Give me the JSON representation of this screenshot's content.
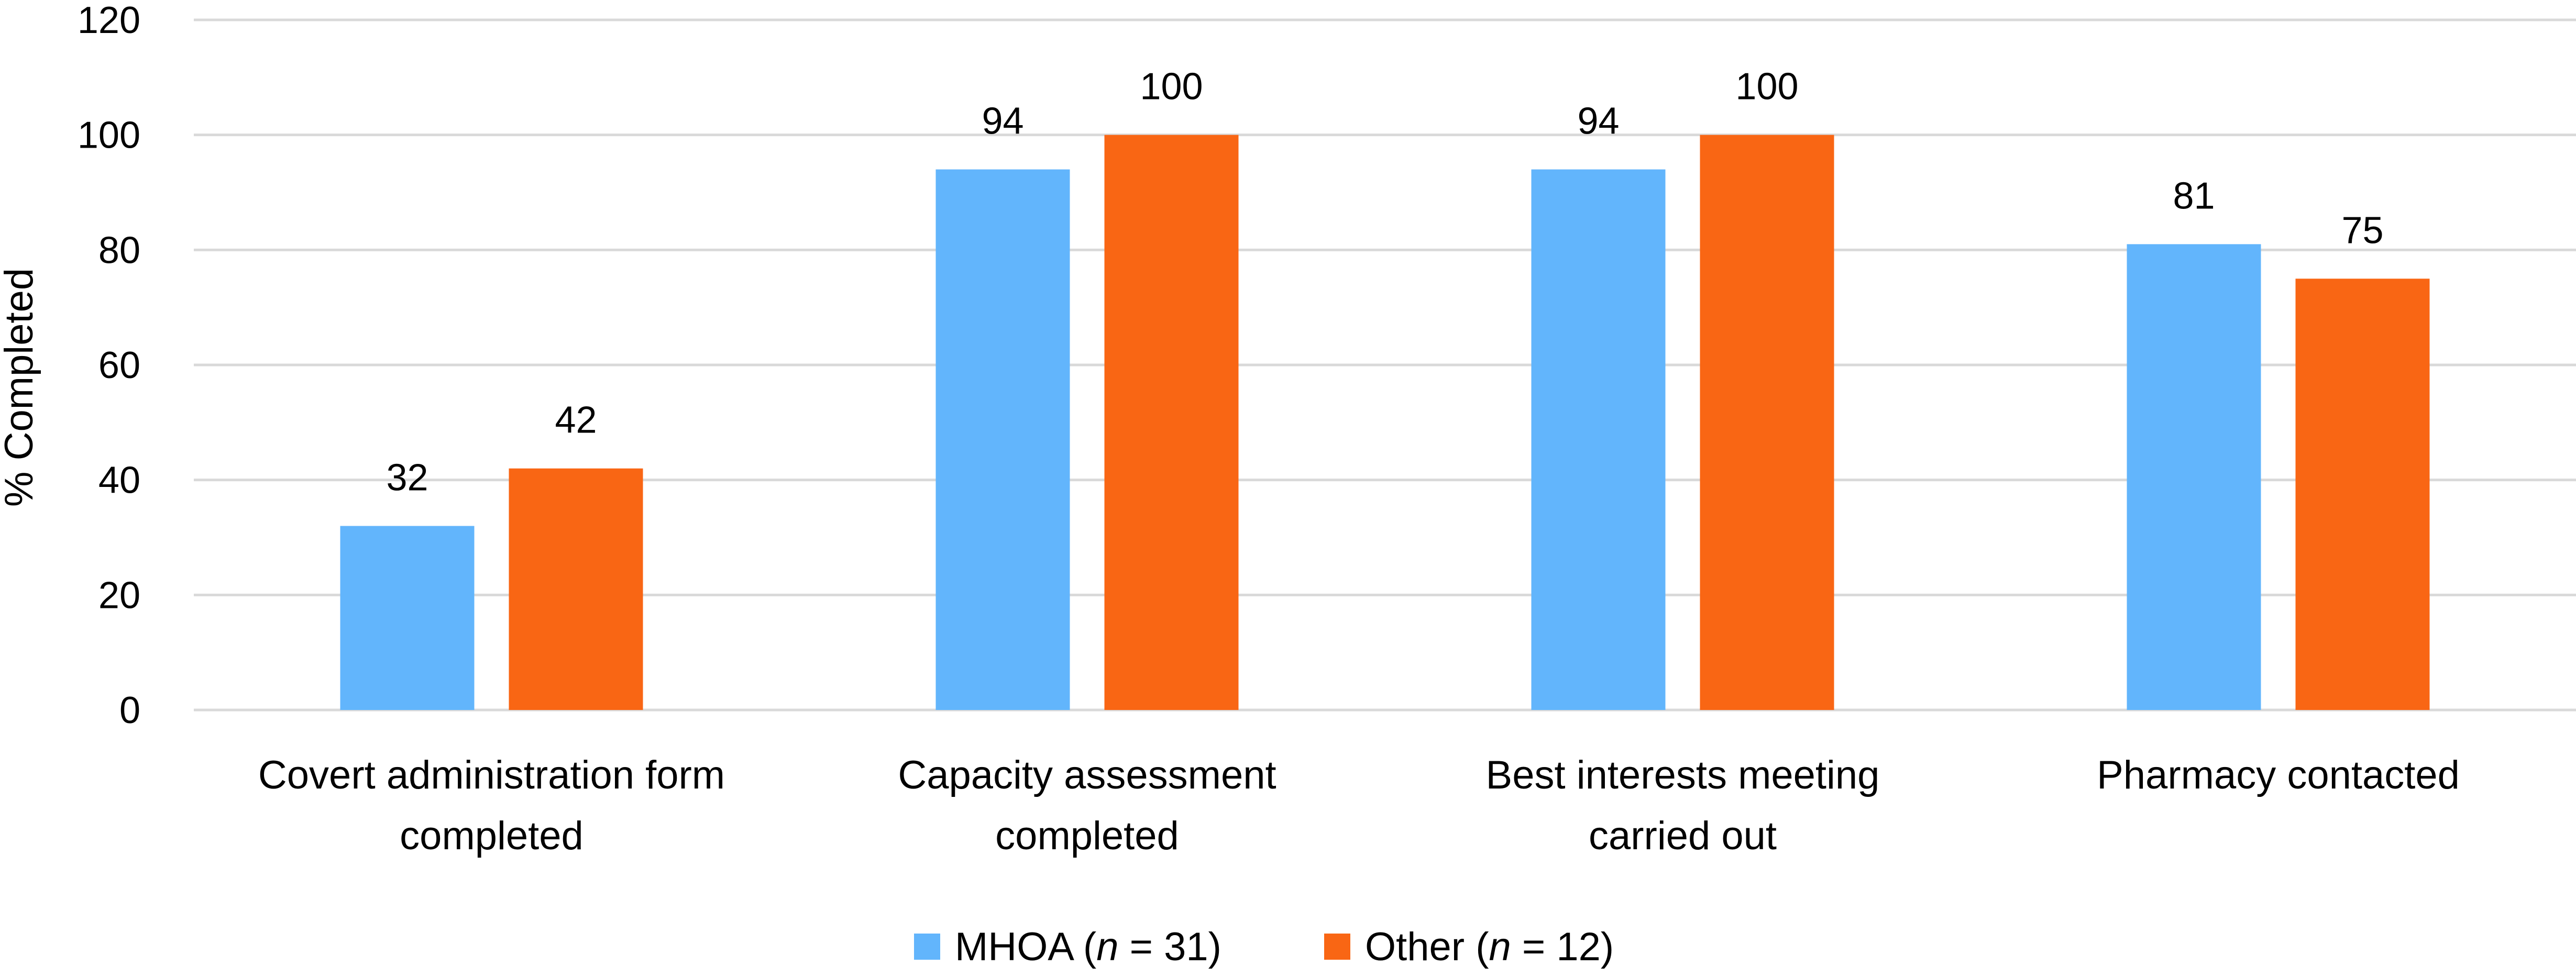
{
  "chart_data": {
    "type": "bar",
    "title": "",
    "xlabel": "",
    "ylabel": "% Completed",
    "ylim": [
      0,
      120
    ],
    "yticks": [
      0,
      20,
      40,
      60,
      80,
      100,
      120
    ],
    "grid": true,
    "legend_position": "bottom",
    "categories": [
      [
        "Covert administration form",
        "completed"
      ],
      [
        "Capacity assessment",
        "completed"
      ],
      [
        "Best interests meeting",
        "carried out"
      ],
      [
        "Pharmacy contacted"
      ]
    ],
    "series": [
      {
        "name": "MHOA",
        "legend_prefix": "MHOA (",
        "legend_italic": "n",
        "legend_suffix": " = 31)",
        "color": "#62b5fc",
        "values": [
          32,
          94,
          94,
          81
        ]
      },
      {
        "name": "Other",
        "legend_prefix": "Other (",
        "legend_italic": "n",
        "legend_suffix": " = 12)",
        "color": "#f96614",
        "values": [
          42,
          100,
          100,
          75
        ]
      }
    ]
  }
}
